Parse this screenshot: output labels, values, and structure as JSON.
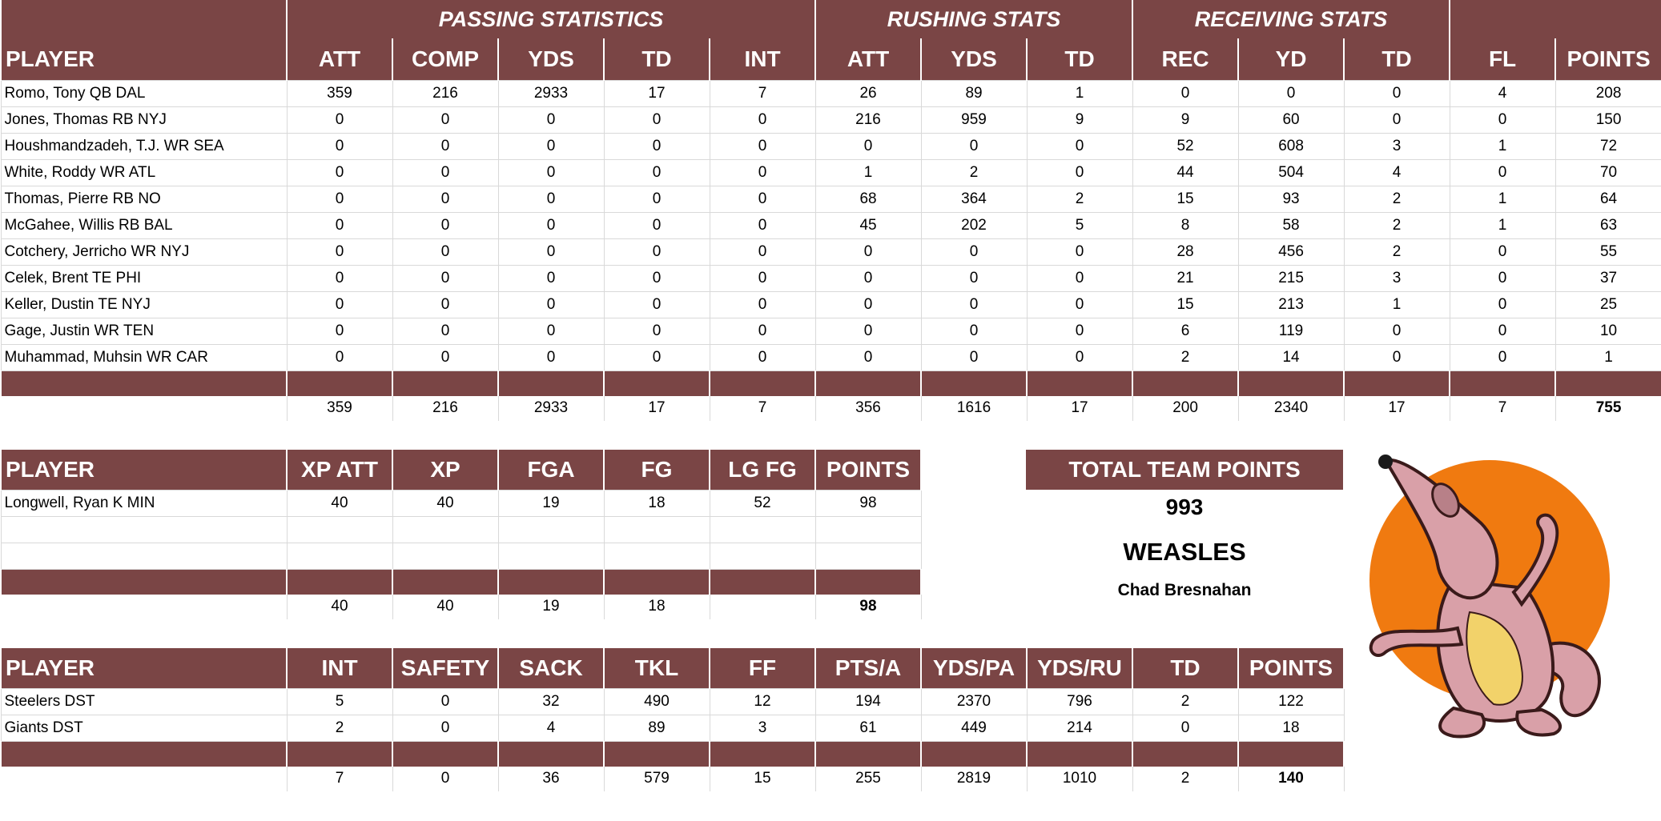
{
  "offense": {
    "group_headers": {
      "passing": "PASSING STATISTICS",
      "rushing": "RUSHING STATS",
      "receiving": "RECEIVING STATS"
    },
    "columns": [
      "PLAYER",
      "ATT",
      "COMP",
      "YDS",
      "TD",
      "INT",
      "ATT",
      "YDS",
      "TD",
      "REC",
      "YD",
      "TD",
      "FL",
      "POINTS"
    ],
    "rows": [
      [
        "Romo, Tony QB DAL",
        "359",
        "216",
        "2933",
        "17",
        "7",
        "26",
        "89",
        "1",
        "0",
        "0",
        "0",
        "4",
        "208"
      ],
      [
        "Jones, Thomas RB NYJ",
        "0",
        "0",
        "0",
        "0",
        "0",
        "216",
        "959",
        "9",
        "9",
        "60",
        "0",
        "0",
        "150"
      ],
      [
        "Houshmandzadeh, T.J. WR SEA",
        "0",
        "0",
        "0",
        "0",
        "0",
        "0",
        "0",
        "0",
        "52",
        "608",
        "3",
        "1",
        "72"
      ],
      [
        "White, Roddy WR ATL",
        "0",
        "0",
        "0",
        "0",
        "0",
        "1",
        "2",
        "0",
        "44",
        "504",
        "4",
        "0",
        "70"
      ],
      [
        "Thomas, Pierre RB NO",
        "0",
        "0",
        "0",
        "0",
        "0",
        "68",
        "364",
        "2",
        "15",
        "93",
        "2",
        "1",
        "64"
      ],
      [
        "McGahee, Willis RB BAL",
        "0",
        "0",
        "0",
        "0",
        "0",
        "45",
        "202",
        "5",
        "8",
        "58",
        "2",
        "1",
        "63"
      ],
      [
        "Cotchery, Jerricho WR NYJ",
        "0",
        "0",
        "0",
        "0",
        "0",
        "0",
        "0",
        "0",
        "28",
        "456",
        "2",
        "0",
        "55"
      ],
      [
        "Celek, Brent TE PHI",
        "0",
        "0",
        "0",
        "0",
        "0",
        "0",
        "0",
        "0",
        "21",
        "215",
        "3",
        "0",
        "37"
      ],
      [
        "Keller, Dustin TE NYJ",
        "0",
        "0",
        "0",
        "0",
        "0",
        "0",
        "0",
        "0",
        "15",
        "213",
        "1",
        "0",
        "25"
      ],
      [
        "Gage, Justin WR TEN",
        "0",
        "0",
        "0",
        "0",
        "0",
        "0",
        "0",
        "0",
        "6",
        "119",
        "0",
        "0",
        "10"
      ],
      [
        "Muhammad, Muhsin WR CAR",
        "0",
        "0",
        "0",
        "0",
        "0",
        "0",
        "0",
        "0",
        "2",
        "14",
        "0",
        "0",
        "1"
      ]
    ],
    "totals": [
      "359",
      "216",
      "2933",
      "17",
      "7",
      "356",
      "1616",
      "17",
      "200",
      "2340",
      "17",
      "7",
      "755"
    ]
  },
  "kicking": {
    "columns": [
      "PLAYER",
      "XP ATT",
      "XP",
      "FGA",
      "FG",
      "LG FG",
      "POINTS"
    ],
    "rows": [
      [
        "Longwell, Ryan K MIN",
        "40",
        "40",
        "19",
        "18",
        "52",
        "98"
      ],
      [
        "",
        "",
        "",
        "",
        "",
        "",
        ""
      ],
      [
        "",
        "",
        "",
        "",
        "",
        "",
        ""
      ]
    ],
    "totals": [
      "40",
      "40",
      "19",
      "18",
      "",
      "98"
    ]
  },
  "defense": {
    "columns": [
      "PLAYER",
      "INT",
      "SAFETY",
      "SACK",
      "TKL",
      "FF",
      "PTS/A",
      "YDS/PA",
      "YDS/RU",
      "TD",
      "POINTS"
    ],
    "rows": [
      [
        "Steelers DST",
        "5",
        "0",
        "32",
        "490",
        "12",
        "194",
        "2370",
        "796",
        "2",
        "122"
      ],
      [
        "Giants DST",
        "2",
        "0",
        "4",
        "89",
        "3",
        "61",
        "449",
        "214",
        "0",
        "18"
      ]
    ],
    "totals": [
      "7",
      "0",
      "36",
      "579",
      "15",
      "255",
      "2819",
      "1010",
      "2",
      "140"
    ]
  },
  "team": {
    "header": "TOTAL TEAM POINTS",
    "points": "993",
    "name": "WEASLES",
    "owner": "Chad Bresnahan"
  },
  "colors": {
    "header_bg": "#7a4545",
    "header_text": "#ffffff",
    "mascot_sun": "#f07a10",
    "mascot_body": "#d9a0a8"
  },
  "icons": {
    "mascot": "weasel-mascot-icon"
  }
}
